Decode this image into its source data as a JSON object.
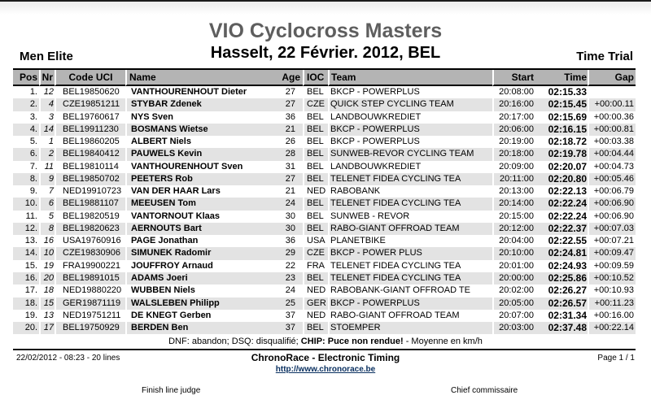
{
  "page": {
    "title": "VIO Cyclocross Masters",
    "subtitle": "Hasselt, 22 Février. 2012, BEL",
    "category": "Men Elite",
    "event_type": "Time Trial"
  },
  "table": {
    "headers": {
      "pos": "Pos",
      "nr": "Nr",
      "code": "Code UCI",
      "name": "Name",
      "age": "Age",
      "ioc": "IOC",
      "team": "Team",
      "start": "Start",
      "time": "Time",
      "gap": "Gap"
    },
    "rows": [
      {
        "pos": "1.",
        "nr": "12",
        "code": "BEL19850620",
        "name": "VANTHOURENHOUT Dieter",
        "age": "27",
        "ioc": "BEL",
        "team": "BKCP - POWERPLUS",
        "start": "20:08:00",
        "time": "02:15.33",
        "gap": ""
      },
      {
        "pos": "2.",
        "nr": "4",
        "code": "CZE19851211",
        "name": "STYBAR Zdenek",
        "age": "27",
        "ioc": "CZE",
        "team": "QUICK STEP CYCLING TEAM",
        "start": "20:16:00",
        "time": "02:15.45",
        "gap": "+00:00.11"
      },
      {
        "pos": "3.",
        "nr": "3",
        "code": "BEL19760617",
        "name": "NYS Sven",
        "age": "36",
        "ioc": "BEL",
        "team": "LANDBOUWKREDIET",
        "start": "20:17:00",
        "time": "02:15.69",
        "gap": "+00:00.36"
      },
      {
        "pos": "4.",
        "nr": "14",
        "code": "BEL19911230",
        "name": "BOSMANS Wietse",
        "age": "21",
        "ioc": "BEL",
        "team": "BKCP - POWERPLUS",
        "start": "20:06:00",
        "time": "02:16.15",
        "gap": "+00:00.81"
      },
      {
        "pos": "5.",
        "nr": "1",
        "code": "BEL19860205",
        "name": "ALBERT Niels",
        "age": "26",
        "ioc": "BEL",
        "team": "BKCP - POWERPLUS",
        "start": "20:19:00",
        "time": "02:18.72",
        "gap": "+00:03.38"
      },
      {
        "pos": "6.",
        "nr": "2",
        "code": "BEL19840412",
        "name": "PAUWELS Kevin",
        "age": "28",
        "ioc": "BEL",
        "team": "SUNWEB-REVOR CYCLING TEAM",
        "start": "20:18:00",
        "time": "02:19.78",
        "gap": "+00:04.44"
      },
      {
        "pos": "7.",
        "nr": "11",
        "code": "BEL19810114",
        "name": "VANTHOURENHOUT Sven",
        "age": "31",
        "ioc": "BEL",
        "team": "LANDBOUWKREDIET",
        "start": "20:09:00",
        "time": "02:20.07",
        "gap": "+00:04.73"
      },
      {
        "pos": "8.",
        "nr": "9",
        "code": "BEL19850702",
        "name": "PEETERS Rob",
        "age": "27",
        "ioc": "BEL",
        "team": "TELENET FIDEA CYCLING TEA",
        "start": "20:11:00",
        "time": "02:20.80",
        "gap": "+00:05.46"
      },
      {
        "pos": "9.",
        "nr": "7",
        "code": "NED19910723",
        "name": "VAN DER HAAR Lars",
        "age": "21",
        "ioc": "NED",
        "team": "RABOBANK",
        "start": "20:13:00",
        "time": "02:22.13",
        "gap": "+00:06.79"
      },
      {
        "pos": "10.",
        "nr": "6",
        "code": "BEL19881107",
        "name": "MEEUSEN Tom",
        "age": "24",
        "ioc": "BEL",
        "team": "TELENET FIDEA CYCLING TEA",
        "start": "20:14:00",
        "time": "02:22.24",
        "gap": "+00:06.90"
      },
      {
        "pos": "11.",
        "nr": "5",
        "code": "BEL19820519",
        "name": "VANTORNOUT Klaas",
        "age": "30",
        "ioc": "BEL",
        "team": "SUNWEB - REVOR",
        "start": "20:15:00",
        "time": "02:22.24",
        "gap": "+00:06.90"
      },
      {
        "pos": "12.",
        "nr": "8",
        "code": "BEL19820623",
        "name": "AERNOUTS Bart",
        "age": "30",
        "ioc": "BEL",
        "team": "RABO-GIANT OFFROAD TEAM",
        "start": "20:12:00",
        "time": "02:22.37",
        "gap": "+00:07.03"
      },
      {
        "pos": "13.",
        "nr": "16",
        "code": "USA19760916",
        "name": "PAGE Jonathan",
        "age": "36",
        "ioc": "USA",
        "team": "PLANETBIKE",
        "start": "20:04:00",
        "time": "02:22.55",
        "gap": "+00:07.21"
      },
      {
        "pos": "14.",
        "nr": "10",
        "code": "CZE19830906",
        "name": "SIMUNEK Radomir",
        "age": "29",
        "ioc": "CZE",
        "team": "BKCP - POWER PLUS",
        "start": "20:10:00",
        "time": "02:24.81",
        "gap": "+00:09.47"
      },
      {
        "pos": "15.",
        "nr": "19",
        "code": "FRA19900221",
        "name": "JOUFFROY Arnaud",
        "age": "22",
        "ioc": "FRA",
        "team": "TELENET FIDEA CYCLING TEA",
        "start": "20:01:00",
        "time": "02:24.93",
        "gap": "+00:09.59"
      },
      {
        "pos": "16.",
        "nr": "20",
        "code": "BEL19891015",
        "name": "ADAMS Joeri",
        "age": "23",
        "ioc": "BEL",
        "team": "TELENET FIDEA CYCLING TEA",
        "start": "20:00:00",
        "time": "02:25.86",
        "gap": "+00:10.52"
      },
      {
        "pos": "17.",
        "nr": "18",
        "code": "NED19880220",
        "name": "WUBBEN Niels",
        "age": "24",
        "ioc": "NED",
        "team": "RABOBANK-GIANT OFFROAD TE",
        "start": "20:02:00",
        "time": "02:26.27",
        "gap": "+00:10.93"
      },
      {
        "pos": "18.",
        "nr": "15",
        "code": "GER19871119",
        "name": "WALSLEBEN Philipp",
        "age": "25",
        "ioc": "GER",
        "team": "BKCP - POWERPLUS",
        "start": "20:05:00",
        "time": "02:26.57",
        "gap": "+00:11.23"
      },
      {
        "pos": "19.",
        "nr": "13",
        "code": "NED19751211",
        "name": "DE KNEGT Gerben",
        "age": "37",
        "ioc": "NED",
        "team": "RABO-GIANT OFFROAD TEAM",
        "start": "20:07:00",
        "time": "02:31.34",
        "gap": "+00:16.00"
      },
      {
        "pos": "20.",
        "nr": "17",
        "code": "BEL19750929",
        "name": "BERDEN Ben",
        "age": "37",
        "ioc": "BEL",
        "team": "STOEMPER",
        "start": "20:03:00",
        "time": "02:37.48",
        "gap": "+00:22.14"
      }
    ]
  },
  "note": {
    "prefix": "DNF: abandon; DSQ: disqualifié; ",
    "chip": "CHIP: Puce non rendue!",
    "suffix": " - Moyenne en km/h"
  },
  "footer": {
    "generated": "22/02/2012 - 08:23 - 20 lines",
    "brand": "ChronoRace - Electronic Timing",
    "link": "http://www.chronorace.be",
    "page": "Page 1 / 1"
  },
  "signatures": {
    "left": "Finish line judge",
    "right": "Chief commissaire"
  },
  "colors": {
    "header_bg": "#b4b4b4",
    "row_alt_bg": "#e3e3e3",
    "title_gray": "#5e5e5e",
    "link_blue": "#0a3060",
    "rule_black": "#111111"
  }
}
